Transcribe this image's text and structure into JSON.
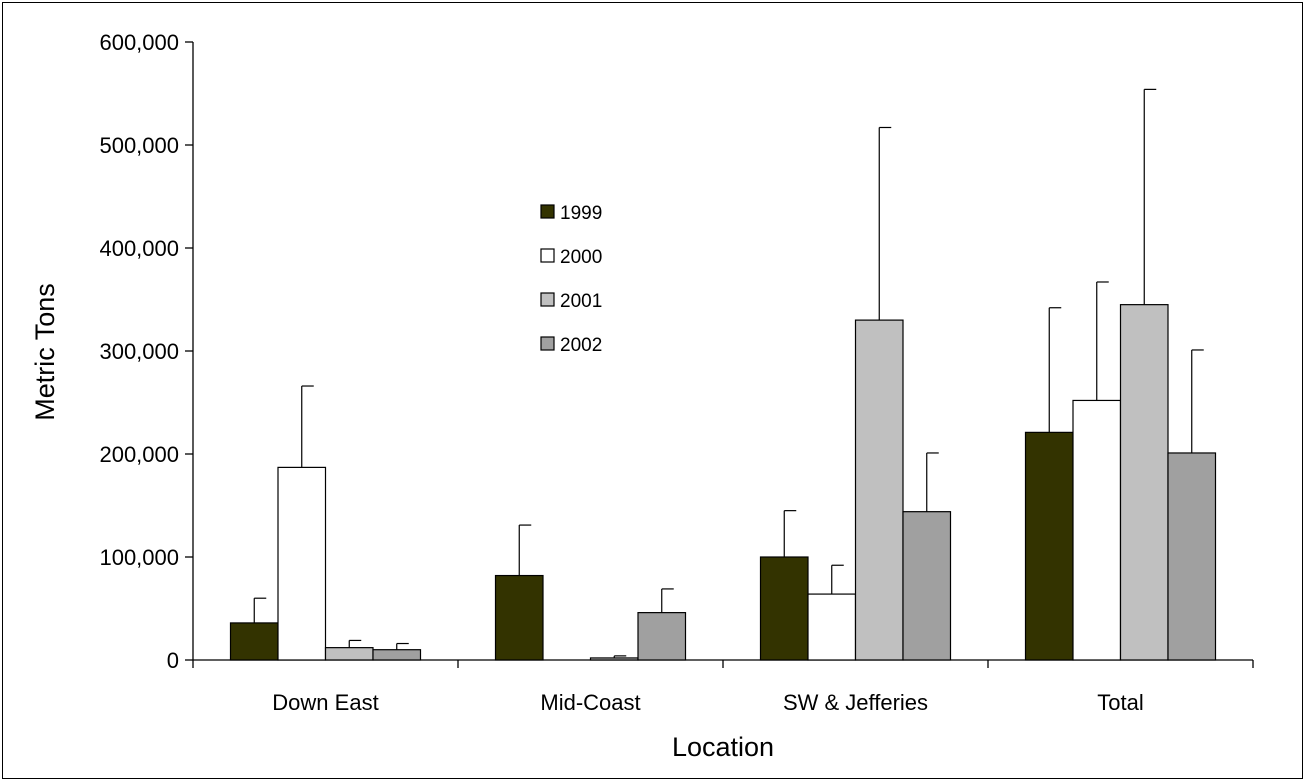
{
  "chart_data": {
    "type": "bar",
    "title": "",
    "xlabel": "Location",
    "ylabel": "Metric Tons",
    "categories": [
      "Down East",
      "Mid-Coast",
      "SW & Jefferies",
      "Total"
    ],
    "ylim": [
      0,
      600000
    ],
    "yticks": [
      0,
      100000,
      200000,
      300000,
      400000,
      500000,
      600000
    ],
    "ytick_labels": [
      "0",
      "100,000",
      "200,000",
      "300,000",
      "400,000",
      "500,000",
      "600,000"
    ],
    "grid": false,
    "legend_placement": "inside-top-center",
    "series": [
      {
        "name": "1999",
        "color": "#333300",
        "values": [
          36000,
          82000,
          100000,
          221000
        ],
        "error_upper": [
          60000,
          131000,
          145000,
          342000
        ]
      },
      {
        "name": "2000",
        "color": "#ffffff",
        "values": [
          187000,
          0,
          64000,
          252000
        ],
        "error_upper": [
          266000,
          0,
          92000,
          367000
        ]
      },
      {
        "name": "2001",
        "color": "#c0c0c0",
        "values": [
          12000,
          2000,
          330000,
          345000
        ],
        "error_upper": [
          19000,
          4000,
          517000,
          554000
        ]
      },
      {
        "name": "2002",
        "color": "#a0a0a0",
        "values": [
          10000,
          46000,
          144000,
          201000
        ],
        "error_upper": [
          16000,
          69000,
          201000,
          301000
        ]
      }
    ]
  }
}
